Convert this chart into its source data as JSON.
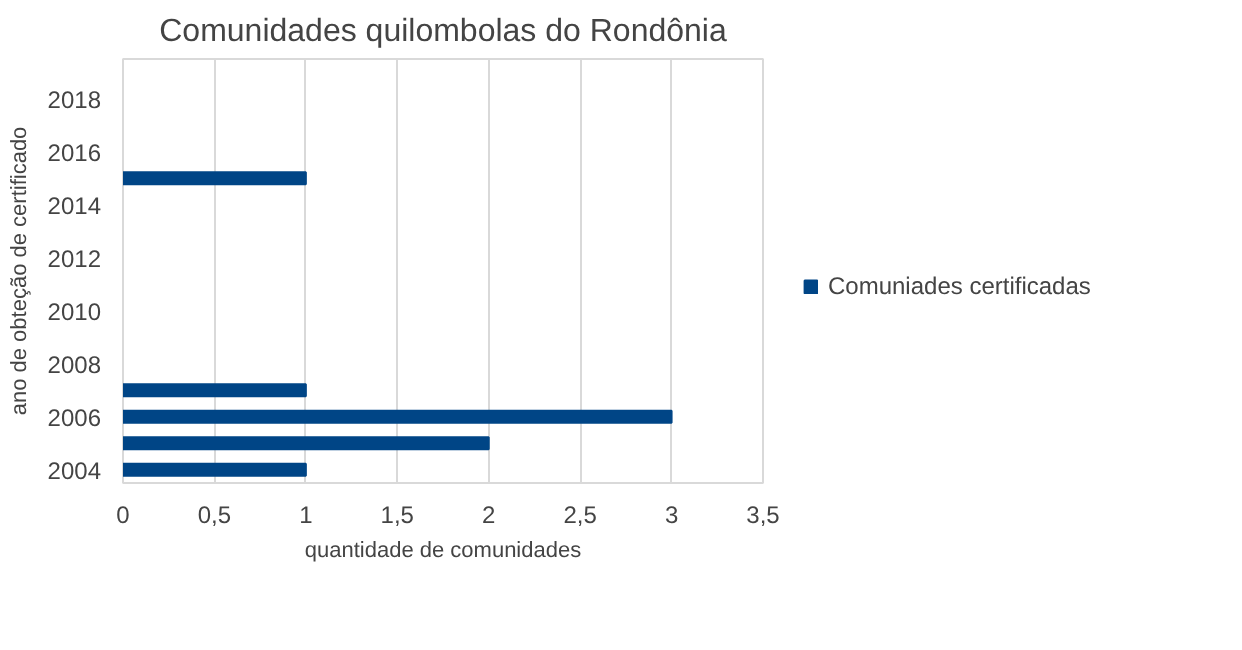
{
  "chart_data": {
    "type": "bar",
    "orientation": "horizontal",
    "title": "Comunidades quilombolas do Rondônia",
    "xlabel": "quantidade de comunidades",
    "ylabel": "ano de obteção de certificado",
    "x": [
      2004,
      2005,
      2006,
      2007,
      2015
    ],
    "series": [
      {
        "name": "Comuniades certificadas",
        "color": "#004586",
        "values": [
          1,
          2,
          3,
          1,
          1
        ]
      }
    ],
    "xlim": [
      0,
      3.5
    ],
    "xticks": [
      0,
      {
        "value": 0.5,
        "label": "0,5"
      },
      1,
      {
        "value": 1.5,
        "label": "1,5"
      },
      2,
      {
        "value": 2.5,
        "label": "2,5"
      },
      3,
      {
        "value": 3.5,
        "label": "3,5"
      }
    ],
    "ylim": [
      2003.5,
      2019.5
    ],
    "yticks": [
      2004,
      2006,
      2008,
      2010,
      2012,
      2014,
      2016,
      2018
    ],
    "grid": "x",
    "legend": "right"
  }
}
